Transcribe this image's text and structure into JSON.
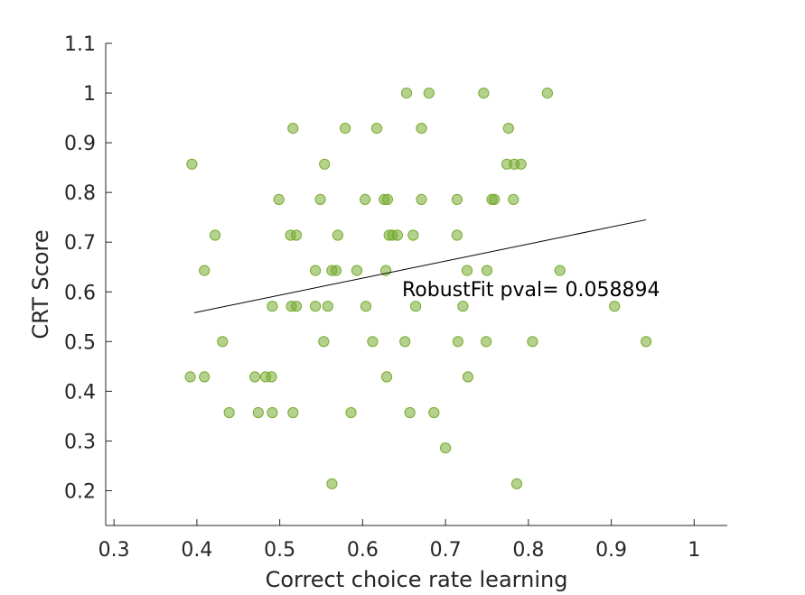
{
  "chart_data": {
    "type": "scatter",
    "title": "",
    "xlabel": "Correct choice rate learning",
    "ylabel": "CRT Score",
    "xlim": [
      0.29,
      1.04
    ],
    "ylim": [
      0.13,
      1.1
    ],
    "xticks": [
      0.3,
      0.4,
      0.5,
      0.6,
      0.7,
      0.8,
      0.9,
      1
    ],
    "xtick_labels": [
      "0.3",
      "0.4",
      "0.5",
      "0.6",
      "0.7",
      "0.8",
      "0.9",
      "1"
    ],
    "yticks": [
      0.2,
      0.3,
      0.4,
      0.5,
      0.6,
      0.7,
      0.8,
      0.9,
      1,
      1.1
    ],
    "ytick_labels": [
      "0.2",
      "0.3",
      "0.4",
      "0.5",
      "0.6",
      "0.7",
      "0.8",
      "0.9",
      "1",
      "1.1"
    ],
    "grid": false,
    "annotation": "RobustFit pval= 0.058894",
    "marker_color": "#77ac30",
    "fit_line_color": "#000000",
    "points": [
      [
        0.653,
        1.0
      ],
      [
        0.68,
        1.0
      ],
      [
        0.746,
        1.0
      ],
      [
        0.823,
        1.0
      ],
      [
        0.516,
        0.929
      ],
      [
        0.579,
        0.929
      ],
      [
        0.617,
        0.929
      ],
      [
        0.671,
        0.929
      ],
      [
        0.776,
        0.929
      ],
      [
        0.394,
        0.857
      ],
      [
        0.554,
        0.857
      ],
      [
        0.774,
        0.857
      ],
      [
        0.783,
        0.857
      ],
      [
        0.791,
        0.857
      ],
      [
        0.499,
        0.786
      ],
      [
        0.549,
        0.786
      ],
      [
        0.603,
        0.786
      ],
      [
        0.626,
        0.786
      ],
      [
        0.63,
        0.786
      ],
      [
        0.671,
        0.786
      ],
      [
        0.714,
        0.786
      ],
      [
        0.756,
        0.786
      ],
      [
        0.759,
        0.786
      ],
      [
        0.782,
        0.786
      ],
      [
        0.422,
        0.714
      ],
      [
        0.513,
        0.714
      ],
      [
        0.52,
        0.714
      ],
      [
        0.57,
        0.714
      ],
      [
        0.632,
        0.714
      ],
      [
        0.636,
        0.714
      ],
      [
        0.642,
        0.714
      ],
      [
        0.661,
        0.714
      ],
      [
        0.714,
        0.714
      ],
      [
        0.409,
        0.643
      ],
      [
        0.543,
        0.643
      ],
      [
        0.563,
        0.643
      ],
      [
        0.568,
        0.643
      ],
      [
        0.593,
        0.643
      ],
      [
        0.628,
        0.643
      ],
      [
        0.726,
        0.643
      ],
      [
        0.75,
        0.643
      ],
      [
        0.838,
        0.643
      ],
      [
        0.491,
        0.571
      ],
      [
        0.514,
        0.571
      ],
      [
        0.52,
        0.571
      ],
      [
        0.543,
        0.571
      ],
      [
        0.558,
        0.571
      ],
      [
        0.604,
        0.571
      ],
      [
        0.664,
        0.571
      ],
      [
        0.721,
        0.571
      ],
      [
        0.904,
        0.571
      ],
      [
        0.431,
        0.5
      ],
      [
        0.553,
        0.5
      ],
      [
        0.612,
        0.5
      ],
      [
        0.651,
        0.5
      ],
      [
        0.715,
        0.5
      ],
      [
        0.749,
        0.5
      ],
      [
        0.805,
        0.5
      ],
      [
        0.942,
        0.5
      ],
      [
        0.392,
        0.429
      ],
      [
        0.409,
        0.429
      ],
      [
        0.47,
        0.429
      ],
      [
        0.483,
        0.429
      ],
      [
        0.49,
        0.429
      ],
      [
        0.629,
        0.429
      ],
      [
        0.727,
        0.429
      ],
      [
        0.439,
        0.357
      ],
      [
        0.474,
        0.357
      ],
      [
        0.491,
        0.357
      ],
      [
        0.516,
        0.357
      ],
      [
        0.586,
        0.357
      ],
      [
        0.657,
        0.357
      ],
      [
        0.686,
        0.357
      ],
      [
        0.7,
        0.286
      ],
      [
        0.563,
        0.214
      ],
      [
        0.786,
        0.214
      ]
    ],
    "fit_line": {
      "x": [
        0.397,
        0.942
      ],
      "y": [
        0.558,
        0.745
      ]
    }
  }
}
